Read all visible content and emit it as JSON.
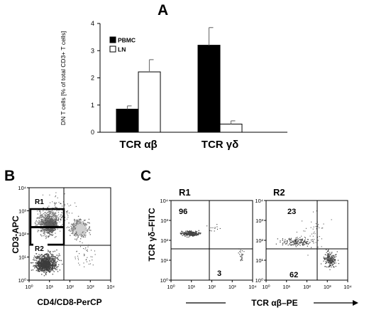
{
  "figure": {
    "panel_a_letter": "A",
    "panel_b_letter": "B",
    "panel_c_letter": "C"
  },
  "chart_data": [
    {
      "panel": "A",
      "type": "bar",
      "categories": [
        "TCR αβ",
        "TCR γδ"
      ],
      "series": [
        {
          "name": "PBMC",
          "values": [
            0.85,
            3.2
          ],
          "errors": [
            0.12,
            0.65
          ],
          "color": "#000000"
        },
        {
          "name": "LN",
          "values": [
            2.22,
            0.3
          ],
          "errors": [
            0.45,
            0.12
          ],
          "color": "#ffffff"
        }
      ],
      "ylabel": "DN T cells [% of total CD3+ T cells]",
      "ylim": [
        0,
        4
      ],
      "yticks": [
        "0",
        "1",
        "2",
        "3",
        "4"
      ],
      "legend_position": "top-left"
    },
    {
      "panel": "B",
      "type": "scatter",
      "xlabel": "CD4/CD8-PerCP",
      "ylabel": "CD3-APC",
      "xscale": "log",
      "yscale": "log",
      "xlim": [
        1,
        10000
      ],
      "ylim": [
        1,
        10000
      ],
      "xticks": [
        "10⁰",
        "10¹",
        "10²",
        "10³",
        "10⁴"
      ],
      "yticks": [
        "10⁰",
        "10¹",
        "10²",
        "10³",
        "10⁴"
      ],
      "gates": [
        "R1",
        "R2"
      ]
    },
    {
      "panel": "C",
      "type": "scatter",
      "xlabel": "TCR αβ–PE",
      "ylabel": "TCR γδ–FITC",
      "xscale": "log",
      "yscale": "log",
      "xlim": [
        1,
        10000
      ],
      "ylim": [
        1,
        10000
      ],
      "xticks": [
        "10⁰",
        "10¹",
        "10²",
        "10³",
        "10⁴"
      ],
      "yticks": [
        "10⁰",
        "10¹",
        "10²",
        "10³",
        "10⁴"
      ],
      "plots": [
        {
          "title": "R1",
          "quadrant_upper_left": "96",
          "quadrant_lower_right": "3"
        },
        {
          "title": "R2",
          "quadrant_upper_left": "23",
          "quadrant_lower_right": "62"
        }
      ]
    }
  ]
}
